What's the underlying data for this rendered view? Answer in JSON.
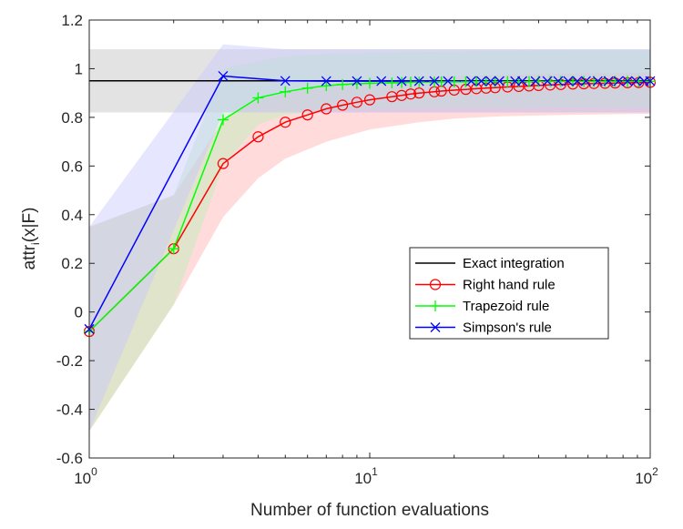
{
  "chart_data": {
    "type": "line",
    "title": "",
    "xlabel": "Number of function evaluations",
    "ylabel_main": "attr",
    "ylabel_sub": "i",
    "ylabel_rest": "(x|F)",
    "xscale": "log",
    "xlim": [
      1,
      100
    ],
    "ylim": [
      -0.6,
      1.2
    ],
    "grid": false,
    "legend_position": "center-right",
    "yticks": [
      "-0.6",
      "-0.4",
      "-0.2",
      "0",
      "0.2",
      "0.4",
      "0.6",
      "0.8",
      "1",
      "1.2"
    ],
    "xticks": [
      {
        "base": "10",
        "exp": "0"
      },
      {
        "base": "10",
        "exp": "1"
      },
      {
        "base": "10",
        "exp": "2"
      }
    ],
    "series": [
      {
        "name": "Exact integration",
        "color": "#000000",
        "marker": "none",
        "x": [
          1,
          100
        ],
        "y": [
          0.95,
          0.95
        ],
        "band": {
          "color": "#c0c0c0",
          "x": [
            1,
            100
          ],
          "lo": [
            0.82,
            0.82
          ],
          "hi": [
            1.08,
            1.08
          ]
        }
      },
      {
        "name": "Right hand rule",
        "color": "#ff0000",
        "marker": "circle",
        "x": [
          1,
          2,
          3,
          4,
          5,
          6,
          7,
          8,
          9,
          10,
          12,
          13,
          14,
          15,
          17,
          18,
          20,
          22,
          24,
          26,
          28,
          31,
          34,
          37,
          40,
          44,
          48,
          53,
          58,
          63,
          69,
          75,
          83,
          91,
          100
        ],
        "y": [
          -0.08,
          0.26,
          0.61,
          0.72,
          0.78,
          0.81,
          0.835,
          0.85,
          0.862,
          0.872,
          0.885,
          0.89,
          0.896,
          0.9,
          0.905,
          0.908,
          0.912,
          0.915,
          0.918,
          0.92,
          0.922,
          0.925,
          0.927,
          0.929,
          0.931,
          0.933,
          0.935,
          0.937,
          0.938,
          0.939,
          0.94,
          0.941,
          0.942,
          0.943,
          0.944
        ],
        "band": {
          "color": "#ffb0b0",
          "x": [
            1,
            2,
            3,
            4,
            5,
            7,
            10,
            15,
            20,
            30,
            50,
            100
          ],
          "lo": [
            -0.49,
            0.03,
            0.39,
            0.55,
            0.63,
            0.7,
            0.75,
            0.78,
            0.795,
            0.805,
            0.81,
            0.815
          ],
          "hi": [
            0.35,
            0.48,
            0.79,
            0.87,
            0.9,
            0.93,
            0.95,
            0.96,
            0.97,
            0.975,
            0.98,
            0.985
          ]
        }
      },
      {
        "name": "Trapezoid rule",
        "color": "#00ff00",
        "marker": "plus",
        "x": [
          1,
          2,
          3,
          4,
          5,
          6,
          7,
          8,
          9,
          10,
          12,
          13,
          14,
          15,
          17,
          18,
          20,
          22,
          24,
          26,
          28,
          31,
          34,
          37,
          40,
          44,
          48,
          53,
          58,
          63,
          69,
          75,
          83,
          91,
          100
        ],
        "y": [
          -0.08,
          0.26,
          0.79,
          0.88,
          0.905,
          0.92,
          0.93,
          0.935,
          0.938,
          0.94,
          0.942,
          0.943,
          0.944,
          0.945,
          0.945,
          0.946,
          0.946,
          0.946,
          0.947,
          0.947,
          0.947,
          0.947,
          0.947,
          0.947,
          0.948,
          0.948,
          0.948,
          0.948,
          0.948,
          0.948,
          0.948,
          0.948,
          0.948,
          0.948,
          0.948
        ],
        "band": {
          "color": "#b8f0b8",
          "x": [
            1,
            2,
            3,
            4,
            5,
            7,
            10,
            20,
            50,
            100
          ],
          "lo": [
            -0.49,
            0.03,
            0.6,
            0.77,
            0.81,
            0.83,
            0.835,
            0.84,
            0.84,
            0.84
          ],
          "hi": [
            0.35,
            0.48,
            1.0,
            1.03,
            1.05,
            1.06,
            1.065,
            1.07,
            1.075,
            1.075
          ]
        }
      },
      {
        "name": "Simpson's rule",
        "color": "#0000ff",
        "marker": "x",
        "x": [
          1,
          3,
          5,
          7,
          9,
          11,
          13,
          15,
          17,
          19,
          23,
          25,
          27,
          29,
          33,
          35,
          39,
          43,
          47,
          51,
          55,
          59,
          65,
          71,
          77,
          83,
          89,
          95,
          100
        ],
        "y": [
          -0.07,
          0.97,
          0.95,
          0.949,
          0.949,
          0.949,
          0.949,
          0.949,
          0.949,
          0.949,
          0.949,
          0.949,
          0.949,
          0.949,
          0.949,
          0.949,
          0.949,
          0.949,
          0.949,
          0.949,
          0.949,
          0.949,
          0.949,
          0.949,
          0.949,
          0.949,
          0.949,
          0.949,
          0.949
        ],
        "band": {
          "color": "#c8c8ff",
          "x": [
            1,
            3,
            5,
            10,
            100
          ],
          "lo": [
            -0.49,
            0.82,
            0.82,
            0.82,
            0.82
          ],
          "hi": [
            0.35,
            1.1,
            1.08,
            1.08,
            1.08
          ]
        }
      }
    ]
  }
}
